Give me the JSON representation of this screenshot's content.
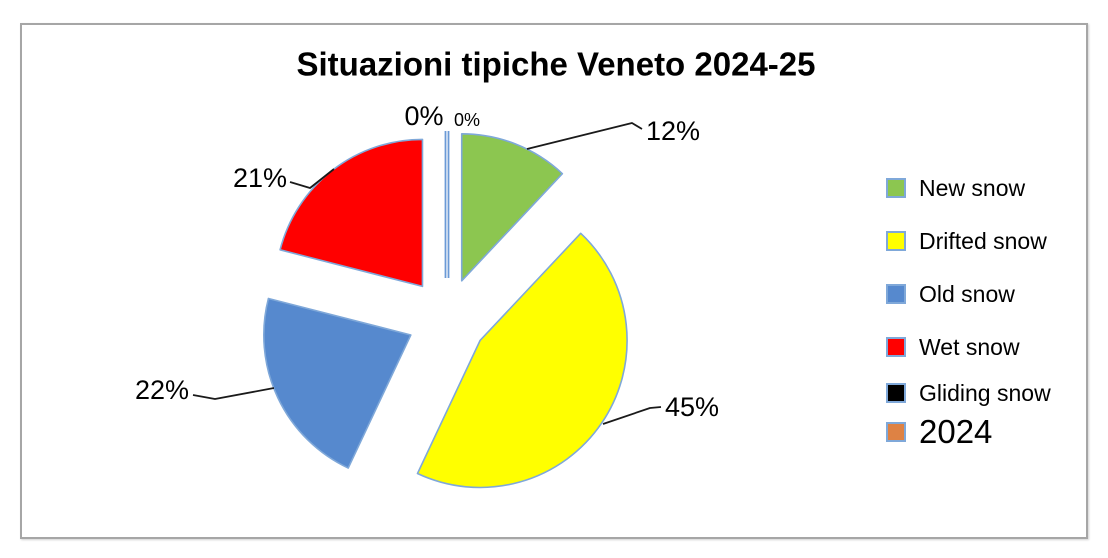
{
  "panel": {
    "border_color": "#A6A6A6",
    "background": "#FFFFFF"
  },
  "chart_data": {
    "type": "pie",
    "title": "Situazioni tipiche Veneto 2024-25",
    "exploded": true,
    "legend_position": "right",
    "outline_color": "#7FA8D9",
    "leader_line_color": "#1A1A1A",
    "slices": [
      {
        "name": "New snow",
        "value_pct": 12,
        "label": "12%",
        "color": "#8CC650"
      },
      {
        "name": "Drifted snow",
        "value_pct": 45,
        "label": "45%",
        "color": "#FFFF00"
      },
      {
        "name": "Old snow",
        "value_pct": 22,
        "label": "22%",
        "color": "#5689CE"
      },
      {
        "name": "Wet snow",
        "value_pct": 21,
        "label": "21%",
        "color": "#FF0000"
      },
      {
        "name": "Gliding snow",
        "value_pct": 0,
        "label": "0%",
        "color": "#000000"
      },
      {
        "name": "2024",
        "value_pct": 0,
        "label": "0%",
        "color": "#DE8244"
      }
    ]
  }
}
